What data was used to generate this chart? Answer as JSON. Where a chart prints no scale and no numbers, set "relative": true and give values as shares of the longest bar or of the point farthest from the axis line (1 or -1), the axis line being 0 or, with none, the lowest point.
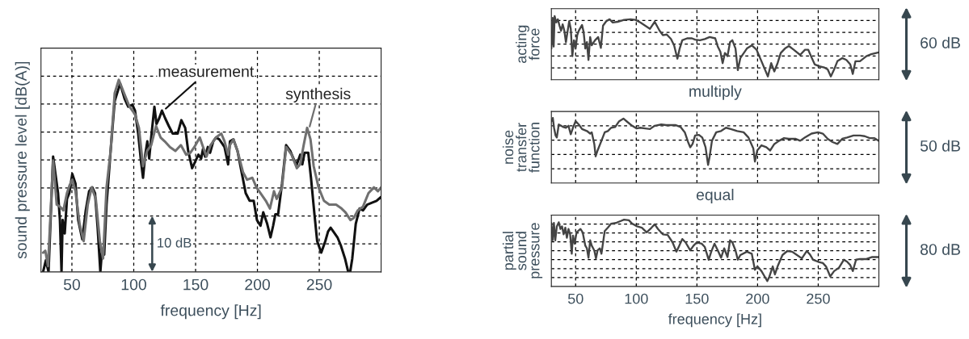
{
  "chart_data": [
    {
      "type": "line",
      "relative": true,
      "xlim": [
        25,
        300
      ],
      "xticks": [
        50,
        100,
        150,
        200,
        250
      ],
      "tick_labels": "x",
      "grid": true,
      "xlabel": "frequency [Hz]",
      "ylabel": "sound pressure level [dB(A)]",
      "annotations": [
        "10 dB"
      ],
      "series": [
        {
          "name": "measurement",
          "color": "#111111",
          "x": [
            26.7,
            28.9,
            31.1,
            34.8,
            38.8,
            40.3,
            41.6,
            42.5,
            44.2,
            46.0,
            47.9,
            50.3,
            52.9,
            55.1,
            58.4,
            61.2,
            63.9,
            66.5,
            68.7,
            70.8,
            73.0,
            74.3,
            76.1,
            78.0,
            81.3,
            84.6,
            89.0,
            92.7,
            95.5,
            98.8,
            101.0,
            103.6,
            105.8,
            107.5,
            109.3,
            111.0,
            112.5,
            114.1,
            116.7,
            118.4,
            120.6,
            122.8,
            125.4,
            128.3,
            131.5,
            135.5,
            138.5,
            141.6,
            144.0,
            147.2,
            150.1,
            152.3,
            154.5,
            156.0,
            157.7,
            159.9,
            161.7,
            164.3,
            166.5,
            169.1,
            171.3,
            173.4,
            176.3,
            177.8,
            180.6,
            183.9,
            187.2,
            190.5,
            193.7,
            197.0,
            199.6,
            202.5,
            204.7,
            207.9,
            210.6,
            212.7,
            214.5,
            216.7,
            219.9,
            223.2,
            226.5,
            229.8,
            231.9,
            234.6,
            236.3,
            238.1,
            241.1,
            243.3,
            246.1,
            248.3,
            251.6,
            254.9,
            257.1,
            259.2,
            261.4,
            264.7,
            267.3,
            270.8,
            273.4,
            275.0,
            276.7,
            279.5,
            282.6,
            285.4,
            288.7,
            292.6,
            296.3,
            300.0
          ],
          "values": [
            0,
            0.06,
            0,
            0.6,
            0.41,
            0.27,
            0,
            0.27,
            0.2,
            0.38,
            0.41,
            0.51,
            0.46,
            0.27,
            0.17,
            0.32,
            0.42,
            0.44,
            0.41,
            0.23,
            0,
            0.11,
            0.09,
            0.35,
            0.63,
            0.89,
            0.98,
            0.9,
            0.86,
            0.87,
            0.84,
            0.72,
            0.58,
            0.49,
            0.61,
            0.68,
            0.59,
            0.7,
            0.86,
            0.77,
            0.8,
            0.84,
            0.8,
            0.76,
            0.72,
            0.72,
            0.79,
            0.75,
            0.63,
            0.54,
            0.58,
            0.61,
            0.59,
            0.64,
            0.6,
            0.65,
            0.62,
            0.68,
            0.7,
            0.69,
            0.67,
            0.65,
            0.56,
            0.68,
            0.69,
            0.63,
            0.52,
            0.41,
            0.37,
            0.37,
            0.27,
            0.24,
            0.31,
            0.25,
            0.18,
            0.24,
            0.3,
            0.3,
            0.46,
            0.66,
            0.63,
            0.58,
            0.56,
            0.61,
            0.56,
            0.62,
            0.62,
            0.49,
            0.3,
            0.16,
            0.1,
            0.16,
            0.21,
            0.23,
            0.21,
            0.18,
            0.14,
            0.07,
            0,
            0,
            0.07,
            0.25,
            0.33,
            0.32,
            0.35,
            0.36,
            0.37,
            0.39
          ]
        },
        {
          "name": "synthesis",
          "color": "#707070",
          "x": [
            26.7,
            28.5,
            30.7,
            34.8,
            37.7,
            40.3,
            43.1,
            46.0,
            48.1,
            50.3,
            52.9,
            56.2,
            59.5,
            62.8,
            66.0,
            69.3,
            72.6,
            75.2,
            78.0,
            81.3,
            84.6,
            87.9,
            92.2,
            96.6,
            101.0,
            104.2,
            107.5,
            110.8,
            114.1,
            118.0,
            121.7,
            125.0,
            129.3,
            133.7,
            138.1,
            142.4,
            145.7,
            149.0,
            153.4,
            155.5,
            158.8,
            162.1,
            166.5,
            170.8,
            173.4,
            176.3,
            177.8,
            180.6,
            183.9,
            188.3,
            191.6,
            195.9,
            199.2,
            202.5,
            206.8,
            210.1,
            213.4,
            215.6,
            219.9,
            223.2,
            227.6,
            231.9,
            234.6,
            237.4,
            240.2,
            242.9,
            245.5,
            249.4,
            253.8,
            258.1,
            263.6,
            268.0,
            271.2,
            275.2,
            277.8,
            281.1,
            285.4,
            289.8,
            294.2,
            297.4,
            300.0
          ],
          "values": [
            0.1,
            0.11,
            0.03,
            0.58,
            0.35,
            0.34,
            0.32,
            0.41,
            0.45,
            0.48,
            0.42,
            0.25,
            0.16,
            0.35,
            0.44,
            0.38,
            0.16,
            0.07,
            0.44,
            0.63,
            0.93,
            1.0,
            0.93,
            0.86,
            0.82,
            0.75,
            0.55,
            0.63,
            0.66,
            0.76,
            0.7,
            0.68,
            0.65,
            0.63,
            0.66,
            0.61,
            0.62,
            0.65,
            0.7,
            0.66,
            0.6,
            0.66,
            0.7,
            0.72,
            0.68,
            0.61,
            0.66,
            0.69,
            0.63,
            0.52,
            0.48,
            0.49,
            0.44,
            0.41,
            0.37,
            0.33,
            0.42,
            0.38,
            0.44,
            0.65,
            0.61,
            0.54,
            0.56,
            0.66,
            0.75,
            0.69,
            0.55,
            0.44,
            0.37,
            0.35,
            0.35,
            0.33,
            0.31,
            0.27,
            0.28,
            0.32,
            0.34,
            0.41,
            0.44,
            0.42,
            0.44
          ]
        }
      ]
    },
    {
      "type": "line",
      "relative": true,
      "xlim": [
        30,
        300
      ],
      "xticks": [
        50,
        100,
        150,
        200,
        250
      ],
      "tick_labels": false,
      "grid": true,
      "ylabel": "acting\nforce",
      "annotations": [
        "60 dB",
        "multiply"
      ],
      "series": [
        {
          "color": "#444444",
          "x": [
            30.0,
            31.1,
            31.9,
            32.7,
            34.0,
            35.3,
            36.7,
            38.0,
            39.3,
            40.7,
            42.0,
            43.3,
            44.7,
            46.0,
            47.3,
            48.6,
            50.0,
            51.3,
            52.6,
            55.3,
            56.6,
            58.0,
            59.3,
            60.6,
            62.0,
            63.3,
            66.0,
            68.6,
            70.8,
            72.6,
            75.3,
            78.0,
            80.6,
            84.6,
            89.9,
            95.3,
            99.3,
            103.3,
            107.3,
            111.3,
            115.2,
            119.2,
            121.9,
            125.1,
            128.6,
            131.2,
            133.9,
            135.8,
            137.9,
            141.9,
            145.9,
            148.5,
            152.5,
            156.5,
            160.5,
            165.1,
            167.2,
            169.3,
            171.2,
            173.1,
            175.2,
            177.3,
            179.2,
            181.8,
            183.7,
            185.8,
            191.2,
            195.2,
            199.2,
            203.2,
            208.5,
            211.2,
            213.8,
            216.5,
            219.1,
            222.6,
            225.8,
            229.8,
            235.1,
            239.1,
            241.8,
            244.5,
            247.1,
            251.1,
            255.1,
            257.8,
            260.4,
            263.1,
            265.8,
            269.8,
            273.2,
            276.4,
            278.5,
            280.7,
            284.4,
            289.7,
            293.7,
            299.9
          ],
          "values": [
            0.49,
            0.97,
            0.52,
            1.0,
            0.9,
            0.95,
            0.85,
            0.77,
            0.87,
            0.77,
            0.59,
            0.75,
            0.92,
            0.8,
            0.37,
            0.62,
            0.49,
            0.7,
            0.77,
            0.86,
            0.75,
            0.49,
            0.59,
            0.31,
            0.67,
            0.54,
            0.62,
            0.67,
            0.5,
            0.85,
            0.92,
            0.95,
            0.9,
            0.91,
            0.94,
            0.95,
            0.94,
            0.9,
            0.85,
            0.8,
            0.91,
            0.77,
            0.7,
            0.71,
            0.64,
            0.54,
            0.33,
            0.49,
            0.62,
            0.65,
            0.65,
            0.63,
            0.62,
            0.64,
            0.67,
            0.65,
            0.52,
            0.44,
            0.26,
            0.42,
            0.37,
            0.59,
            0.62,
            0.49,
            0.15,
            0.34,
            0.49,
            0.54,
            0.47,
            0.29,
            0.05,
            0.26,
            0.13,
            0.26,
            0.42,
            0.49,
            0.53,
            0.47,
            0.39,
            0.47,
            0.47,
            0.35,
            0.24,
            0.21,
            0.19,
            0.16,
            0.05,
            0.16,
            0.29,
            0.34,
            0.31,
            0.24,
            0.09,
            0.29,
            0.29,
            0.37,
            0.4,
            0.43
          ]
        }
      ]
    },
    {
      "type": "line",
      "relative": true,
      "xlim": [
        30,
        300
      ],
      "xticks": [
        50,
        100,
        150,
        200,
        250
      ],
      "tick_labels": false,
      "grid": true,
      "ylabel": "noise\ntransfer\nfunction",
      "annotations": [
        "50 dB",
        "equal"
      ],
      "series": [
        {
          "color": "#444444",
          "x": [
            30.0,
            31.2,
            32.2,
            33.5,
            34.5,
            36.1,
            38.0,
            39.9,
            42.0,
            44.1,
            46.0,
            47.8,
            50.0,
            52.6,
            55.3,
            59.3,
            62.0,
            63.3,
            65.4,
            66.5,
            68.1,
            71.3,
            74.0,
            76.6,
            79.3,
            82.5,
            85.9,
            89.4,
            92.6,
            96.6,
            100.1,
            103.3,
            107.3,
            111.3,
            115.2,
            120.6,
            124.6,
            128.6,
            132.6,
            136.6,
            140.0,
            142.7,
            144.5,
            146.4,
            148.5,
            151.7,
            154.4,
            157.1,
            159.2,
            160.5,
            162.4,
            165.9,
            169.9,
            173.9,
            177.9,
            183.2,
            188.5,
            192.5,
            196.5,
            197.8,
            199.7,
            203.2,
            207.2,
            210.4,
            213.8,
            217.8,
            221.8,
            225.8,
            231.1,
            235.1,
            239.1,
            244.5,
            249.8,
            253.8,
            257.8,
            261.8,
            265.8,
            269.8,
            273.8,
            279.1,
            284.4,
            288.4,
            292.4,
            296.4,
            299.9
          ],
          "values": [
            0.95,
            1.0,
            0.85,
            0.73,
            0.7,
            0.9,
            0.88,
            0.86,
            0.85,
            0.88,
            0.75,
            0.85,
            0.95,
            0.9,
            0.83,
            0.8,
            0.76,
            0.78,
            0.6,
            0.41,
            0.5,
            0.65,
            0.78,
            0.8,
            0.85,
            0.86,
            0.95,
            0.99,
            0.94,
            0.88,
            0.84,
            0.85,
            0.84,
            0.83,
            0.88,
            0.9,
            0.89,
            0.89,
            0.89,
            0.86,
            0.78,
            0.63,
            0.55,
            0.6,
            0.73,
            0.74,
            0.7,
            0.55,
            0.28,
            0.41,
            0.65,
            0.78,
            0.8,
            0.85,
            0.83,
            0.8,
            0.78,
            0.7,
            0.53,
            0.33,
            0.5,
            0.58,
            0.55,
            0.5,
            0.6,
            0.65,
            0.69,
            0.68,
            0.68,
            0.65,
            0.7,
            0.76,
            0.78,
            0.76,
            0.68,
            0.63,
            0.6,
            0.68,
            0.7,
            0.73,
            0.73,
            0.72,
            0.69,
            0.69,
            0.65
          ]
        }
      ]
    },
    {
      "type": "line",
      "relative": true,
      "xlim": [
        30,
        300
      ],
      "xticks": [
        50,
        100,
        150,
        200,
        250
      ],
      "tick_labels": "x",
      "grid": true,
      "xlabel": "frequency [Hz]",
      "ylabel": "partial\nsound\npressure",
      "annotations": [
        "80 dB"
      ],
      "series": [
        {
          "color": "#444444",
          "x": [
            30.0,
            31.1,
            32.1,
            33.2,
            34.5,
            36.1,
            37.5,
            38.8,
            40.1,
            41.5,
            42.8,
            44.1,
            45.5,
            46.8,
            47.8,
            49.2,
            50.8,
            54.0,
            55.8,
            58.0,
            59.3,
            60.6,
            62.0,
            63.3,
            65.4,
            66.8,
            68.1,
            70.0,
            71.3,
            74.0,
            76.6,
            79.3,
            83.3,
            87.3,
            89.9,
            93.9,
            96.6,
            100.6,
            104.6,
            108.6,
            112.6,
            115.2,
            117.9,
            121.9,
            125.9,
            129.9,
            133.1,
            135.2,
            137.9,
            140.6,
            144.5,
            147.2,
            149.9,
            153.9,
            156.5,
            159.7,
            161.8,
            164.5,
            167.2,
            169.9,
            172.5,
            175.2,
            177.3,
            179.2,
            181.8,
            183.7,
            185.8,
            191.2,
            195.2,
            197.8,
            199.9,
            203.2,
            205.8,
            208.0,
            209.8,
            212.5,
            214.3,
            216.5,
            220.5,
            224.5,
            228.5,
            232.5,
            236.5,
            240.5,
            243.1,
            245.8,
            249.8,
            253.8,
            256.4,
            259.9,
            263.1,
            267.1,
            271.1,
            273.8,
            276.4,
            278.5,
            281.2,
            284.4,
            289.7,
            294.5,
            299.9
          ],
          "values": [
            0.95,
            0.69,
            0.95,
            0.69,
            0.9,
            0.96,
            0.86,
            0.9,
            0.78,
            0.88,
            0.73,
            0.86,
            0.78,
            0.49,
            0.76,
            0.64,
            0.81,
            0.86,
            0.81,
            0.61,
            0.57,
            0.43,
            0.69,
            0.61,
            0.54,
            0.42,
            0.54,
            0.57,
            0.49,
            0.83,
            0.88,
            0.94,
            0.95,
            0.98,
            1.0,
            0.99,
            0.94,
            0.9,
            0.88,
            0.81,
            0.88,
            0.93,
            0.86,
            0.78,
            0.77,
            0.66,
            0.52,
            0.6,
            0.71,
            0.66,
            0.54,
            0.61,
            0.66,
            0.64,
            0.59,
            0.4,
            0.52,
            0.64,
            0.54,
            0.43,
            0.57,
            0.44,
            0.69,
            0.66,
            0.54,
            0.4,
            0.47,
            0.52,
            0.49,
            0.25,
            0.3,
            0.23,
            0.15,
            0.08,
            0.15,
            0.3,
            0.18,
            0.3,
            0.47,
            0.53,
            0.52,
            0.47,
            0.42,
            0.53,
            0.48,
            0.4,
            0.37,
            0.35,
            0.3,
            0.15,
            0.23,
            0.28,
            0.4,
            0.37,
            0.32,
            0.23,
            0.4,
            0.41,
            0.41,
            0.44,
            0.44
          ]
        }
      ]
    }
  ]
}
